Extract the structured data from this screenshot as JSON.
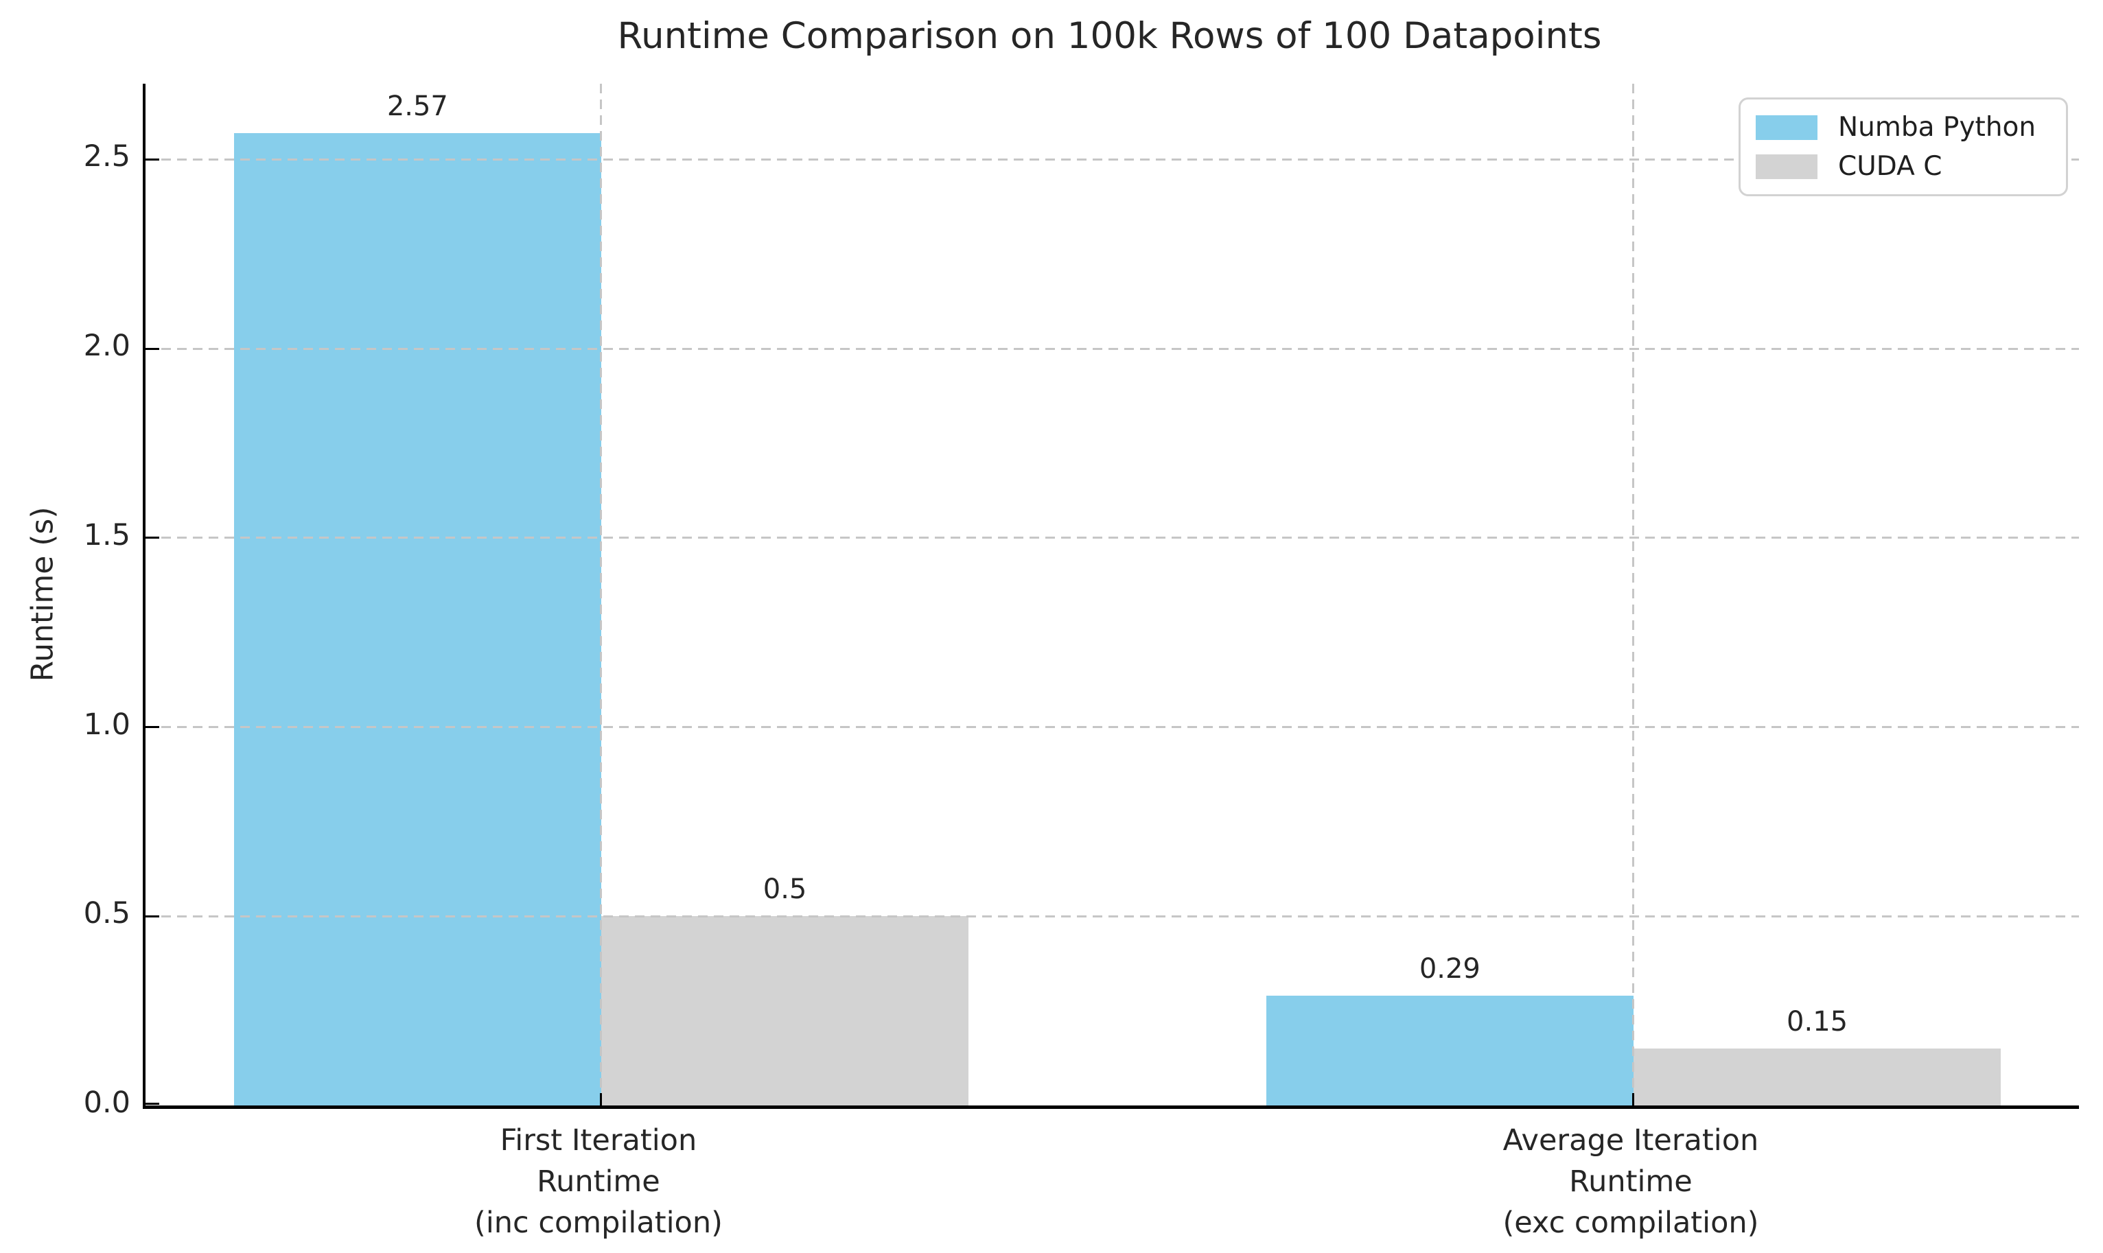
{
  "chart_data": {
    "type": "bar",
    "title": "Runtime Comparison on 100k Rows of 100 Datapoints",
    "xlabel": "",
    "ylabel": "Runtime (s)",
    "categories": [
      "First Iteration\nRuntime\n(inc compilation)",
      "Average Iteration\nRuntime\n(exc compilation)"
    ],
    "series": [
      {
        "name": "Numba Python",
        "color": "#87CEEB",
        "values": [
          2.57,
          0.29
        ],
        "value_labels": [
          "2.57",
          "0.29"
        ]
      },
      {
        "name": "CUDA C",
        "color": "#D3D3D3",
        "values": [
          0.5,
          0.15
        ],
        "value_labels": [
          "0.5",
          "0.15"
        ]
      }
    ],
    "ylim": [
      0,
      2.7
    ],
    "yticks": [
      0.0,
      0.5,
      1.0,
      1.5,
      2.0,
      2.5
    ],
    "ytick_labels": [
      "0.0",
      "0.5",
      "1.0",
      "1.5",
      "2.0",
      "2.5"
    ],
    "grid": true,
    "grid_style": "dashed",
    "grid_over_bars": true,
    "legend_position": "upper right"
  },
  "colors": {
    "text": "#262626",
    "grid": "#c6c6c6",
    "spine": "#000000",
    "legend_border": "#d2d2d2",
    "background": "#ffffff"
  }
}
